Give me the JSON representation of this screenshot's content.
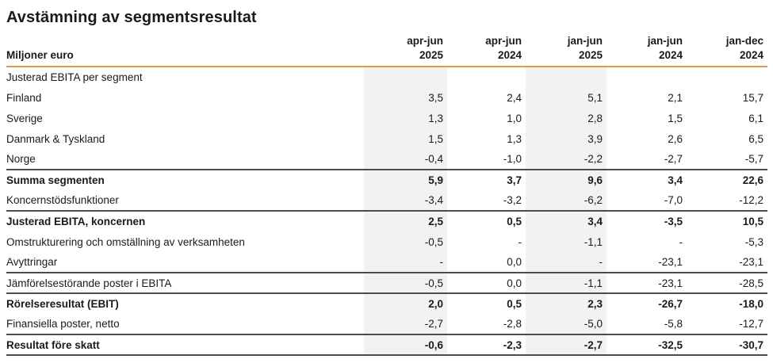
{
  "title": "Avstämning av segmentsresultat",
  "table": {
    "unit_label": "Miljoner euro",
    "columns": [
      {
        "period": "apr-jun",
        "year": "2025",
        "highlight": true
      },
      {
        "period": "apr-jun",
        "year": "2024",
        "highlight": false
      },
      {
        "period": "jan-jun",
        "year": "2025",
        "highlight": true
      },
      {
        "period": "jan-jun",
        "year": "2024",
        "highlight": false
      },
      {
        "period": "jan-dec",
        "year": "2024",
        "highlight": false
      }
    ],
    "rows": [
      {
        "label": "Justerad EBITA per segment",
        "values": [
          "",
          "",
          "",
          "",
          ""
        ],
        "bold": false
      },
      {
        "label": "Finland",
        "values": [
          "3,5",
          "2,4",
          "5,1",
          "2,1",
          "15,7"
        ],
        "bold": false
      },
      {
        "label": "Sverige",
        "values": [
          "1,3",
          "1,0",
          "2,8",
          "1,5",
          "6,1"
        ],
        "bold": false
      },
      {
        "label": "Danmark & Tyskland",
        "values": [
          "1,5",
          "1,3",
          "3,9",
          "2,6",
          "6,5"
        ],
        "bold": false
      },
      {
        "label": "Norge",
        "values": [
          "-0,4",
          "-1,0",
          "-2,2",
          "-2,7",
          "-5,7"
        ],
        "bold": false
      },
      {
        "label": "Summa segmenten",
        "values": [
          "5,9",
          "3,7",
          "9,6",
          "3,4",
          "22,6"
        ],
        "bold": true
      },
      {
        "label": "Koncernstödsfunktioner",
        "values": [
          "-3,4",
          "-3,2",
          "-6,2",
          "-7,0",
          "-12,2"
        ],
        "bold": false
      },
      {
        "label": "Justerad EBITA, koncernen",
        "values": [
          "2,5",
          "0,5",
          "3,4",
          "-3,5",
          "10,5"
        ],
        "bold": true
      },
      {
        "label": "Omstrukturering och omställning av verksamheten",
        "values": [
          "-0,5",
          "-",
          "-1,1",
          "-",
          "-5,3"
        ],
        "bold": false
      },
      {
        "label": "Avyttringar",
        "values": [
          "-",
          "0,0",
          "-",
          "-23,1",
          "-23,1"
        ],
        "bold": false
      },
      {
        "label": "Jämförelsestörande poster i EBITA",
        "values": [
          "-0,5",
          "0,0",
          "-1,1",
          "-23,1",
          "-28,5"
        ],
        "bold": false
      },
      {
        "label": "Rörelseresultat (EBIT)",
        "values": [
          "2,0",
          "0,5",
          "2,3",
          "-26,7",
          "-18,0"
        ],
        "bold": true
      },
      {
        "label": "Finansiella poster, netto",
        "values": [
          "-2,7",
          "-2,8",
          "-5,0",
          "-5,8",
          "-12,7"
        ],
        "bold": false
      },
      {
        "label": "Resultat före skatt",
        "values": [
          "-0,6",
          "-2,3",
          "-2,7",
          "-32,5",
          "-30,7"
        ],
        "bold": true
      }
    ],
    "colors": {
      "header_rule": "#E59A48",
      "section_rule": "#4D4D4D",
      "column_highlight": "#F2F2F2",
      "text": "#1A1A1A",
      "background": "#FFFFFF"
    }
  }
}
